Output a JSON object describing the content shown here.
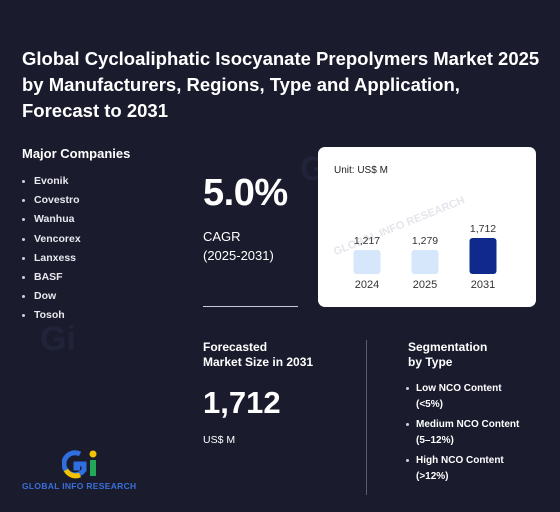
{
  "title": "Global Cycloaliphatic Isocyanate Prepolymers Market 2025 by Manufacturers, Regions, Type and Application, Forecast to 2031",
  "companies": {
    "heading": "Major Companies",
    "items": [
      "Evonik",
      "Covestro",
      "Wanhua",
      "Vencorex",
      "Lanxess",
      "BASF",
      "Dow",
      "Tosoh"
    ]
  },
  "cagr": {
    "value": "5.0%",
    "label": "CAGR",
    "period": "(2025-2031)"
  },
  "chart": {
    "unit": "Unit: US$ M",
    "watermark": "GLOBAL INFO RESEARCH",
    "colors": {
      "light": "#d6e6fb",
      "dark": "#0f2a8c"
    }
  },
  "chart_data": {
    "type": "bar",
    "categories": [
      "2024",
      "2025",
      "2031"
    ],
    "values": [
      1217,
      1279,
      1712
    ],
    "value_labels": [
      "1,217",
      "1,279",
      "1,712"
    ],
    "ylabel": "Unit: US$ M"
  },
  "forecast": {
    "label_line1": "Forecasted",
    "label_line2": "Market Size in 2031",
    "value": "1,712",
    "unit": "US$ M"
  },
  "segmentation": {
    "heading_line1": "Segmentation",
    "heading_line2": "by Type",
    "items": [
      {
        "name": "Low NCO Content",
        "range": "(<5%)"
      },
      {
        "name": "Medium NCO Content",
        "range": "(5–12%)"
      },
      {
        "name": "High NCO Content",
        "range": "(>12%)"
      }
    ]
  },
  "logo": {
    "text": "GLOBAL INFO RESEARCH",
    "icon": "gi-logo-icon",
    "colors": {
      "yellow": "#f2c200",
      "blue": "#2f6fe0",
      "green": "#23a85a"
    }
  }
}
